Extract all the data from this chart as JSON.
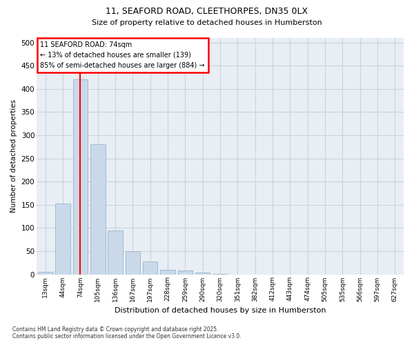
{
  "title1": "11, SEAFORD ROAD, CLEETHORPES, DN35 0LX",
  "title2": "Size of property relative to detached houses in Humberston",
  "xlabel": "Distribution of detached houses by size in Humberston",
  "ylabel": "Number of detached properties",
  "categories": [
    "13sqm",
    "44sqm",
    "74sqm",
    "105sqm",
    "136sqm",
    "167sqm",
    "197sqm",
    "228sqm",
    "259sqm",
    "290sqm",
    "320sqm",
    "351sqm",
    "382sqm",
    "412sqm",
    "443sqm",
    "474sqm",
    "505sqm",
    "535sqm",
    "566sqm",
    "597sqm",
    "627sqm"
  ],
  "values": [
    5,
    152,
    420,
    280,
    95,
    50,
    27,
    10,
    8,
    3,
    1,
    0,
    0,
    0,
    0,
    0,
    0,
    0,
    0,
    0,
    0
  ],
  "bar_color": "#c9d9ea",
  "bar_edge_color": "#9ab4cc",
  "marker_index": 2,
  "annotation_title": "11 SEAFORD ROAD: 74sqm",
  "annotation_line1": "← 13% of detached houses are smaller (139)",
  "annotation_line2": "85% of semi-detached houses are larger (884) →",
  "annotation_box_color": "white",
  "annotation_box_edge": "red",
  "vline_color": "red",
  "ylim": [
    0,
    510
  ],
  "yticks": [
    0,
    50,
    100,
    150,
    200,
    250,
    300,
    350,
    400,
    450,
    500
  ],
  "bg_color": "#e8eef4",
  "grid_color": "#c8d4de",
  "footnote1": "Contains HM Land Registry data © Crown copyright and database right 2025.",
  "footnote2": "Contains public sector information licensed under the Open Government Licence v3.0."
}
